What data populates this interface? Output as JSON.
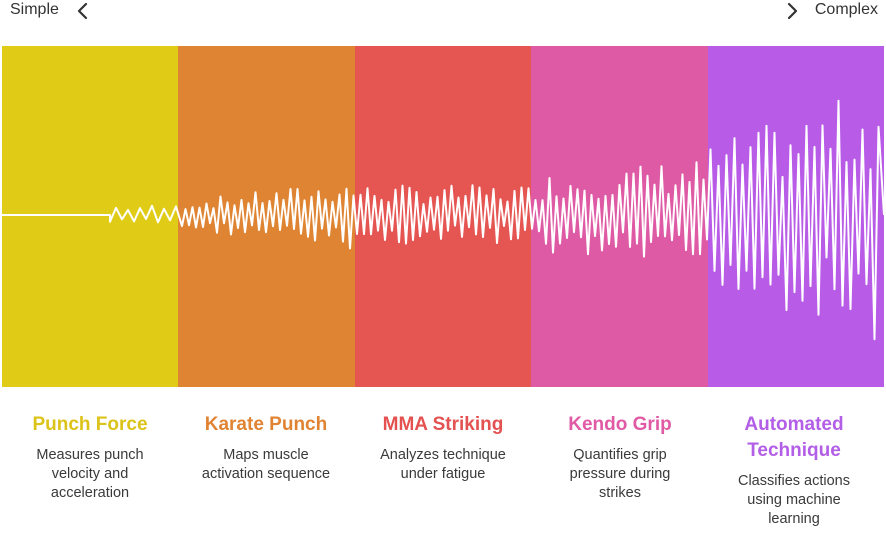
{
  "scale": {
    "left_label": "Simple",
    "right_label": "Complex",
    "left_icon": "chevron-left-icon",
    "right_icon": "chevron-right-icon"
  },
  "stages": [
    {
      "title": "Punch Force",
      "description": "Measures punch velocity and acceleration",
      "color": "#e0cc16",
      "title_color": "#dcc31a"
    },
    {
      "title": "Karate Punch",
      "description": "Maps muscle activation sequence",
      "color": "#df8432",
      "title_color": "#e08434"
    },
    {
      "title": "MMA Striking",
      "description": "Analyzes technique under fatigue",
      "color": "#e55552",
      "title_color": "#e35250"
    },
    {
      "title": "Kendo Grip",
      "description": "Quantifies grip pressure during strikes",
      "color": "#df5aa5",
      "title_color": "#e05aa4"
    },
    {
      "title": "Automated Technique",
      "description": "Classifies actions using machine learning",
      "color": "#b85be6",
      "title_color": "#b35ee6"
    }
  ],
  "wave_color": "#ffffff"
}
